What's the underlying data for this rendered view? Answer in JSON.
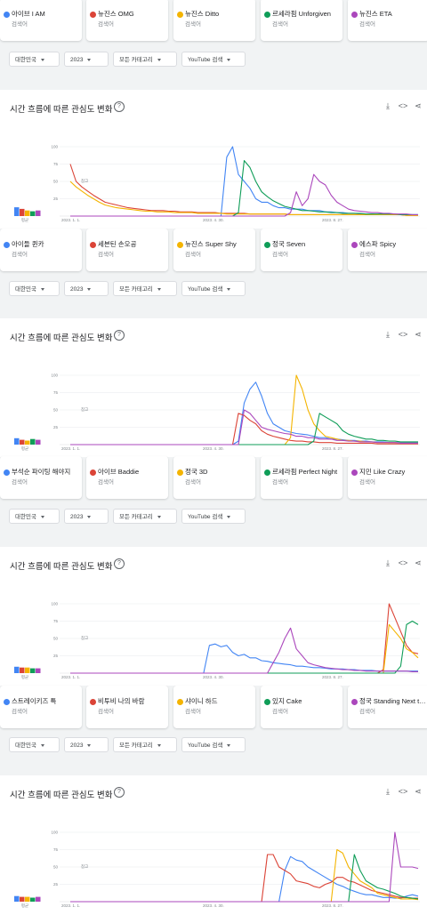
{
  "filters": {
    "region": "대한민국",
    "year": "2023",
    "category": "모든 카테고리",
    "search_type": "YouTube 검색"
  },
  "card": {
    "title": "시간 흐름에 따른 관심도 변화",
    "help": "?",
    "download": "⤓",
    "embed": "<>",
    "share": "⋖"
  },
  "colors": [
    "#4285f4",
    "#db4437",
    "#f4b400",
    "#0f9d58",
    "#ab47bc"
  ],
  "term_sub": "검색어",
  "avg_label": "평균",
  "note": "참고",
  "x_labels": [
    "2023. 1. 1.",
    "2023. 4. 30.",
    "2023. 8. 27."
  ],
  "y_ticks": [
    "100",
    "75",
    "50",
    "25"
  ],
  "sections": [
    {
      "terms": [
        "아이브 I AM",
        "뉴진스 OMG",
        "뉴진스 Ditto",
        "르세라핌 Unforgiven",
        "뉴진스 ETA"
      ],
      "avg": [
        0.55,
        0.45,
        0.35,
        0.3,
        0.35
      ],
      "series": [
        [
          0,
          0,
          0,
          0,
          0,
          0,
          0,
          0,
          0,
          0,
          0,
          0,
          0,
          0,
          0,
          0,
          0,
          0,
          0,
          0,
          0,
          0,
          0,
          0,
          0,
          0,
          0,
          85,
          100,
          60,
          50,
          40,
          25,
          20,
          20,
          15,
          12,
          12,
          10,
          10,
          10,
          8,
          8,
          8,
          6,
          6,
          5,
          5,
          4,
          4,
          3,
          3,
          3,
          2,
          2,
          2,
          2,
          2,
          2,
          2,
          2
        ],
        [
          75,
          50,
          42,
          36,
          30,
          25,
          20,
          18,
          16,
          14,
          12,
          11,
          10,
          9,
          8,
          8,
          8,
          7,
          7,
          6,
          6,
          6,
          5,
          5,
          5,
          5,
          4,
          4,
          4,
          4,
          4,
          3,
          3,
          3,
          3,
          3,
          3,
          3,
          2,
          2,
          2,
          2,
          2,
          2,
          2,
          2,
          2,
          2,
          2,
          2,
          2,
          2,
          2,
          2,
          2,
          2,
          2,
          2,
          1,
          1,
          1
        ],
        [
          50,
          42,
          36,
          30,
          25,
          20,
          16,
          14,
          12,
          11,
          10,
          9,
          8,
          7,
          7,
          6,
          6,
          6,
          5,
          5,
          5,
          5,
          4,
          4,
          4,
          4,
          4,
          3,
          3,
          3,
          3,
          3,
          3,
          3,
          3,
          3,
          3,
          3,
          2,
          2,
          2,
          2,
          2,
          2,
          2,
          2,
          2,
          2,
          2,
          2,
          2,
          2,
          2,
          2,
          2,
          2,
          2,
          2,
          1,
          1,
          1
        ],
        [
          0,
          0,
          0,
          0,
          0,
          0,
          0,
          0,
          0,
          0,
          0,
          0,
          0,
          0,
          0,
          0,
          0,
          0,
          0,
          0,
          0,
          0,
          0,
          0,
          0,
          0,
          0,
          0,
          0,
          5,
          80,
          70,
          50,
          35,
          28,
          22,
          18,
          14,
          12,
          10,
          8,
          8,
          7,
          6,
          6,
          5,
          5,
          4,
          4,
          4,
          4,
          3,
          3,
          3,
          3,
          3,
          3,
          2,
          2,
          2,
          2
        ],
        [
          0,
          0,
          0,
          0,
          0,
          0,
          0,
          0,
          0,
          0,
          0,
          0,
          0,
          0,
          0,
          0,
          0,
          0,
          0,
          0,
          0,
          0,
          0,
          0,
          0,
          0,
          0,
          0,
          0,
          0,
          0,
          0,
          0,
          0,
          0,
          0,
          0,
          0,
          5,
          35,
          15,
          25,
          60,
          50,
          45,
          30,
          20,
          15,
          10,
          8,
          7,
          6,
          5,
          5,
          4,
          4,
          3,
          3,
          3,
          2,
          2
        ]
      ]
    },
    {
      "terms": [
        "아이들 퀸카",
        "세븐틴 손오공",
        "뉴진스 Super Shy",
        "정국 Seven",
        "에스파 Spicy"
      ],
      "avg": [
        0.4,
        0.3,
        0.25,
        0.35,
        0.3
      ],
      "series": [
        [
          0,
          0,
          0,
          0,
          0,
          0,
          0,
          0,
          0,
          0,
          0,
          0,
          0,
          0,
          0,
          0,
          0,
          0,
          0,
          0,
          0,
          0,
          0,
          0,
          0,
          0,
          0,
          0,
          0,
          5,
          60,
          80,
          90,
          70,
          45,
          30,
          25,
          20,
          18,
          16,
          15,
          14,
          12,
          10,
          10,
          8,
          8,
          7,
          6,
          6,
          5,
          5,
          4,
          4,
          4,
          3,
          3,
          3,
          3,
          3,
          3
        ],
        [
          0,
          0,
          0,
          0,
          0,
          0,
          0,
          0,
          0,
          0,
          0,
          0,
          0,
          0,
          0,
          0,
          0,
          0,
          0,
          0,
          0,
          0,
          0,
          0,
          0,
          0,
          0,
          0,
          0,
          45,
          42,
          35,
          30,
          20,
          15,
          12,
          10,
          8,
          6,
          5,
          5,
          4,
          4,
          3,
          3,
          3,
          2,
          2,
          2,
          2,
          2,
          2,
          2,
          1,
          1,
          1,
          1,
          1,
          1,
          1,
          1
        ],
        [
          0,
          0,
          0,
          0,
          0,
          0,
          0,
          0,
          0,
          0,
          0,
          0,
          0,
          0,
          0,
          0,
          0,
          0,
          0,
          0,
          0,
          0,
          0,
          0,
          0,
          0,
          0,
          0,
          0,
          0,
          0,
          0,
          0,
          0,
          0,
          0,
          0,
          0,
          10,
          100,
          80,
          50,
          30,
          20,
          12,
          10,
          8,
          6,
          6,
          5,
          5,
          4,
          4,
          3,
          3,
          3,
          3,
          2,
          2,
          2,
          2
        ],
        [
          0,
          0,
          0,
          0,
          0,
          0,
          0,
          0,
          0,
          0,
          0,
          0,
          0,
          0,
          0,
          0,
          0,
          0,
          0,
          0,
          0,
          0,
          0,
          0,
          0,
          0,
          0,
          0,
          0,
          0,
          0,
          0,
          0,
          0,
          0,
          0,
          0,
          0,
          0,
          0,
          0,
          0,
          5,
          45,
          40,
          35,
          30,
          20,
          15,
          12,
          10,
          8,
          8,
          6,
          6,
          5,
          5,
          4,
          4,
          4,
          4
        ],
        [
          0,
          0,
          0,
          0,
          0,
          0,
          0,
          0,
          0,
          0,
          0,
          0,
          0,
          0,
          0,
          0,
          0,
          0,
          0,
          0,
          0,
          0,
          0,
          0,
          0,
          0,
          0,
          0,
          0,
          0,
          50,
          45,
          35,
          25,
          22,
          20,
          18,
          16,
          15,
          12,
          12,
          10,
          10,
          8,
          8,
          8,
          6,
          6,
          5,
          5,
          4,
          4,
          4,
          3,
          3,
          3,
          3,
          2,
          2,
          2,
          2
        ]
      ]
    },
    {
      "terms": [
        "부석순 파이팅 해야지",
        "아이브 Baddie",
        "정국 3D",
        "르세라핌 Perfect Night",
        "지민 Like Crazy"
      ],
      "avg": [
        0.45,
        0.35,
        0.4,
        0.35,
        0.25
      ],
      "series": [
        [
          0,
          0,
          0,
          0,
          0,
          0,
          0,
          0,
          0,
          0,
          0,
          0,
          0,
          0,
          0,
          0,
          0,
          0,
          0,
          0,
          0,
          0,
          0,
          0,
          0,
          0,
          0,
          0,
          0,
          0,
          0,
          0,
          0,
          0,
          0,
          0,
          0,
          0,
          0,
          0,
          0,
          0,
          0,
          0,
          0,
          0,
          0,
          0,
          0,
          0,
          0,
          0,
          0,
          0,
          0,
          0,
          0,
          0,
          0,
          0,
          0
        ],
        [
          0,
          0,
          0,
          0,
          0,
          0,
          0,
          0,
          0,
          0,
          0,
          0,
          0,
          0,
          0,
          0,
          0,
          0,
          0,
          0,
          0,
          0,
          0,
          0,
          0,
          0,
          0,
          0,
          0,
          0,
          0,
          0,
          0,
          0,
          0,
          0,
          0,
          0,
          0,
          0,
          0,
          0,
          0,
          0,
          0,
          0,
          0,
          0,
          0,
          0,
          0,
          0,
          0,
          0,
          5,
          100,
          80,
          60,
          40,
          30,
          28
        ],
        [
          0,
          0,
          0,
          0,
          0,
          0,
          0,
          0,
          0,
          0,
          0,
          0,
          0,
          0,
          0,
          0,
          0,
          0,
          0,
          0,
          0,
          0,
          0,
          0,
          0,
          0,
          0,
          0,
          0,
          0,
          0,
          0,
          0,
          0,
          0,
          0,
          0,
          0,
          0,
          0,
          0,
          0,
          0,
          0,
          0,
          0,
          0,
          0,
          0,
          0,
          0,
          0,
          0,
          0,
          0,
          70,
          60,
          50,
          35,
          30,
          22
        ],
        [
          0,
          0,
          0,
          0,
          0,
          0,
          0,
          0,
          0,
          0,
          0,
          0,
          0,
          0,
          0,
          0,
          0,
          0,
          0,
          0,
          0,
          0,
          0,
          0,
          0,
          0,
          0,
          0,
          0,
          0,
          0,
          0,
          0,
          0,
          0,
          0,
          0,
          0,
          0,
          0,
          0,
          0,
          0,
          0,
          0,
          0,
          0,
          0,
          0,
          0,
          0,
          0,
          0,
          0,
          0,
          0,
          0,
          10,
          70,
          75,
          70
        ],
        [
          0,
          0,
          0,
          0,
          0,
          0,
          0,
          0,
          0,
          0,
          0,
          0,
          0,
          0,
          0,
          0,
          0,
          0,
          0,
          0,
          0,
          0,
          0,
          0,
          0,
          0,
          0,
          0,
          0,
          0,
          0,
          0,
          0,
          0,
          0,
          0,
          0,
          0,
          0,
          0,
          0,
          0,
          0,
          0,
          0,
          0,
          0,
          0,
          0,
          0,
          0,
          0,
          0,
          0,
          0,
          0,
          0,
          0,
          0,
          0,
          0
        ]
      ]
    }
  ],
  "section_specials": {
    "s3_blue": [
      0,
      0,
      0,
      0,
      0,
      0,
      0,
      0,
      0,
      0,
      0,
      0,
      0,
      0,
      0,
      0,
      0,
      0,
      0,
      0,
      0,
      0,
      0,
      0,
      40,
      42,
      38,
      40,
      30,
      25,
      27,
      22,
      22,
      18,
      17,
      15,
      14,
      13,
      12,
      10,
      10,
      9,
      8,
      8,
      7,
      6,
      6,
      6,
      5,
      5,
      4,
      4,
      4,
      3,
      3,
      3,
      3,
      3,
      3,
      3,
      3
    ],
    "s3_purple": [
      0,
      0,
      0,
      0,
      0,
      0,
      0,
      0,
      0,
      0,
      0,
      0,
      0,
      0,
      0,
      0,
      0,
      0,
      0,
      0,
      0,
      0,
      0,
      0,
      0,
      0,
      0,
      0,
      0,
      0,
      0,
      0,
      0,
      0,
      0,
      15,
      30,
      50,
      65,
      35,
      25,
      15,
      12,
      10,
      8,
      7,
      6,
      5,
      5,
      4,
      4,
      3,
      3,
      3,
      3,
      3,
      3,
      3,
      3,
      2,
      2
    ]
  },
  "last_section": {
    "avg": [
      0.35,
      0.3,
      0.3,
      0.25,
      0.3
    ],
    "series": [
      [
        0,
        0,
        0,
        0,
        0,
        0,
        0,
        0,
        0,
        0,
        0,
        0,
        0,
        0,
        0,
        0,
        0,
        0,
        0,
        0,
        0,
        0,
        0,
        0,
        0,
        0,
        0,
        0,
        0,
        0,
        0,
        0,
        0,
        0,
        0,
        0,
        0,
        45,
        65,
        60,
        58,
        50,
        45,
        40,
        35,
        30,
        25,
        22,
        18,
        15,
        12,
        10,
        10,
        8,
        6,
        6,
        5,
        5,
        8,
        10,
        8
      ],
      [
        0,
        0,
        0,
        0,
        0,
        0,
        0,
        0,
        0,
        0,
        0,
        0,
        0,
        0,
        0,
        0,
        0,
        0,
        0,
        0,
        0,
        0,
        0,
        0,
        0,
        0,
        0,
        0,
        0,
        0,
        0,
        0,
        0,
        0,
        68,
        68,
        50,
        45,
        40,
        30,
        28,
        26,
        22,
        20,
        25,
        28,
        35,
        35,
        30,
        28,
        24,
        20,
        16,
        14,
        12,
        10,
        8,
        6,
        6,
        5,
        5
      ],
      [
        0,
        0,
        0,
        0,
        0,
        0,
        0,
        0,
        0,
        0,
        0,
        0,
        0,
        0,
        0,
        0,
        0,
        0,
        0,
        0,
        0,
        0,
        0,
        0,
        0,
        0,
        0,
        0,
        0,
        0,
        0,
        0,
        0,
        0,
        0,
        0,
        0,
        0,
        0,
        0,
        0,
        0,
        0,
        0,
        0,
        0,
        75,
        70,
        50,
        40,
        30,
        25,
        20,
        12,
        10,
        8,
        6,
        4,
        4,
        4,
        3
      ],
      [
        0,
        0,
        0,
        0,
        0,
        0,
        0,
        0,
        0,
        0,
        0,
        0,
        0,
        0,
        0,
        0,
        0,
        0,
        0,
        0,
        0,
        0,
        0,
        0,
        0,
        0,
        0,
        0,
        0,
        0,
        0,
        0,
        0,
        0,
        0,
        0,
        0,
        0,
        0,
        0,
        0,
        0,
        0,
        0,
        0,
        0,
        0,
        0,
        0,
        68,
        45,
        30,
        25,
        20,
        18,
        15,
        12,
        8,
        6,
        5,
        4
      ],
      [
        0,
        0,
        0,
        0,
        0,
        0,
        0,
        0,
        0,
        0,
        0,
        0,
        0,
        0,
        0,
        0,
        0,
        0,
        0,
        0,
        0,
        0,
        0,
        0,
        0,
        0,
        0,
        0,
        0,
        0,
        0,
        0,
        0,
        0,
        0,
        0,
        0,
        0,
        0,
        0,
        0,
        0,
        0,
        0,
        0,
        0,
        0,
        0,
        0,
        0,
        0,
        0,
        0,
        0,
        0,
        0,
        100,
        50,
        50,
        50,
        48
      ]
    ]
  },
  "bottom_card_title": "시간 흐름에 따른 관심도 변화"
}
